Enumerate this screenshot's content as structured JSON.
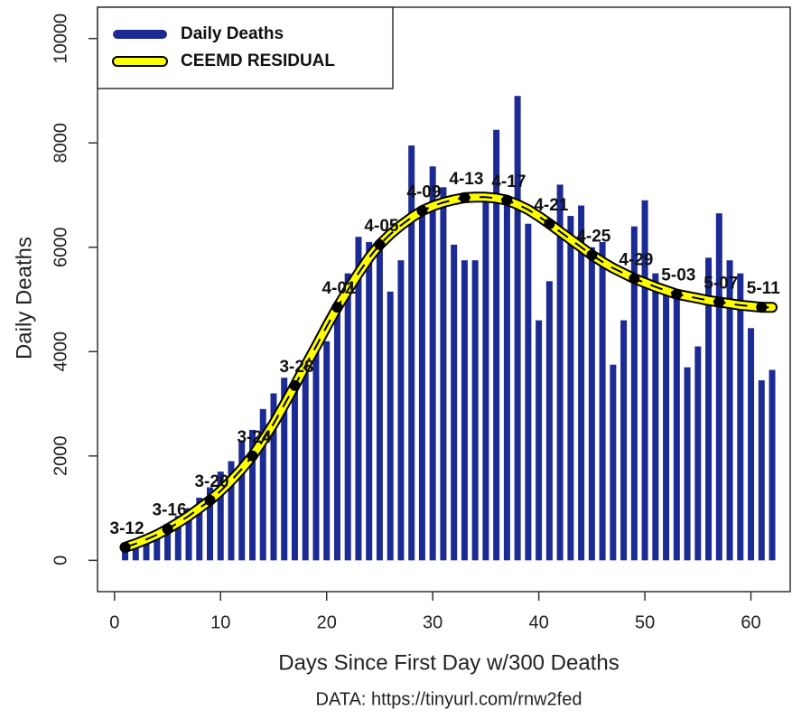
{
  "chart_data": {
    "type": "bar",
    "x_label": "Days Since First Day w/300 Deaths",
    "y_label": "Daily Deaths",
    "footnote": "DATA: https://tinyurl.com/rnw2fed",
    "xlim": [
      -1.6,
      63.7
    ],
    "ylim": [
      -600,
      10600
    ],
    "xticks": [
      0,
      10,
      20,
      30,
      40,
      50,
      60
    ],
    "yticks": [
      0,
      2000,
      4000,
      6000,
      8000,
      10000
    ],
    "legend": "top-left",
    "x": [
      1,
      2,
      3,
      4,
      5,
      6,
      7,
      8,
      9,
      10,
      11,
      12,
      13,
      14,
      15,
      16,
      17,
      18,
      19,
      20,
      21,
      22,
      23,
      24,
      25,
      26,
      27,
      28,
      29,
      30,
      31,
      32,
      33,
      34,
      35,
      36,
      37,
      38,
      39,
      40,
      41,
      42,
      43,
      44,
      45,
      46,
      47,
      48,
      49,
      50,
      51,
      52,
      53,
      54,
      55,
      56,
      57,
      58,
      59,
      60,
      61,
      62
    ],
    "series": [
      {
        "name": "Daily Deaths",
        "color": "#1c2b94",
        "type": "bar",
        "values": [
          300,
          350,
          450,
          550,
          700,
          850,
          1000,
          1200,
          1400,
          1700,
          1900,
          2300,
          2500,
          2900,
          3200,
          3500,
          3400,
          3600,
          4000,
          4200,
          4900,
          5500,
          6200,
          6100,
          6100,
          5150,
          5750,
          7950,
          6700,
          7550,
          7150,
          6050,
          5750,
          5750,
          6900,
          8250,
          6900,
          8900,
          6450,
          4600,
          5350,
          7200,
          6600,
          6800,
          6000,
          6100,
          3750,
          4600,
          6400,
          6900,
          5500,
          5200,
          5100,
          3700,
          4100,
          5800,
          6650,
          5750,
          5500,
          4450,
          3450,
          3650
        ]
      },
      {
        "name": "CEEMD RESIDUAL",
        "color": "#ffff00",
        "type": "line",
        "values": [
          250,
          320,
          400,
          490,
          600,
          720,
          850,
          1000,
          1150,
          1330,
          1530,
          1750,
          2000,
          2300,
          2620,
          2980,
          3350,
          3730,
          4100,
          4480,
          4850,
          5180,
          5500,
          5800,
          6050,
          6250,
          6420,
          6570,
          6700,
          6790,
          6860,
          6910,
          6950,
          6960,
          6960,
          6940,
          6900,
          6820,
          6720,
          6590,
          6450,
          6300,
          6150,
          6000,
          5850,
          5720,
          5600,
          5500,
          5400,
          5320,
          5240,
          5170,
          5100,
          5060,
          5020,
          4980,
          4950,
          4920,
          4890,
          4870,
          4850,
          4850
        ]
      }
    ],
    "point_labels": {
      "x": [
        1,
        5,
        9,
        13,
        17,
        21,
        25,
        29,
        33,
        37,
        41,
        45,
        49,
        53,
        57,
        61
      ],
      "labels": [
        "3-12",
        "3-16",
        "3-20",
        "3-24",
        "3-28",
        "4-01",
        "4-05",
        "4-09",
        "4-13",
        "4-17",
        "4-21",
        "4-25",
        "4-29",
        "5-03",
        "5-07",
        "5-11"
      ]
    }
  }
}
